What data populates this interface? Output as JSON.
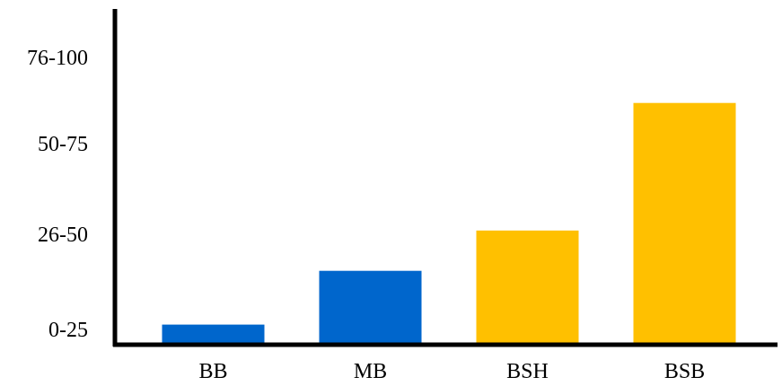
{
  "chart_data": {
    "type": "bar",
    "categories": [
      "BB",
      "MB",
      "BSH",
      "BSB"
    ],
    "values": [
      6,
      22,
      34,
      72
    ],
    "ylim": [
      0,
      100
    ],
    "y_tick_labels": [
      "0-25",
      "26-50",
      "50-75",
      "76-100"
    ],
    "grid": false,
    "legend": "none",
    "title": "",
    "xlabel": "",
    "ylabel": "",
    "bar_colors": [
      "#0066cc",
      "#0066cc",
      "#ffc000",
      "#ffc000"
    ],
    "axis_color": "#000000"
  }
}
